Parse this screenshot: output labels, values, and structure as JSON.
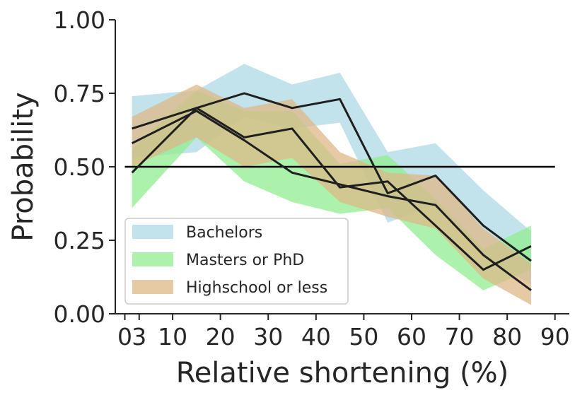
{
  "chart_data": {
    "type": "line",
    "title": "",
    "xlabel": "Relative shortening (%)",
    "ylabel": "Probability",
    "xlim": [
      -2,
      93
    ],
    "ylim": [
      0,
      1
    ],
    "x_ticks": [
      0,
      3,
      10,
      20,
      30,
      40,
      50,
      60,
      70,
      80,
      90
    ],
    "x_tick_labels": [
      "0",
      "3",
      "10",
      "20",
      "30",
      "40",
      "50",
      "60",
      "70",
      "80",
      "90"
    ],
    "y_ticks": [
      0,
      0.25,
      0.5,
      0.75,
      1.0
    ],
    "y_tick_labels": [
      "0.00",
      "0.25",
      "0.50",
      "0.75",
      "1.00"
    ],
    "grid": false,
    "legend_position": "lower-left",
    "reference_line": {
      "y": 0.5,
      "x_range": [
        0,
        90
      ],
      "color": "#000000"
    },
    "series": [
      {
        "name": "Bachelors",
        "color": "#add8e6",
        "x": [
          1.5,
          15,
          25,
          35,
          45,
          55,
          65,
          75,
          85
        ],
        "mean": [
          0.63,
          0.7,
          0.75,
          0.7,
          0.73,
          0.41,
          0.47,
          0.3,
          0.18
        ],
        "upper": [
          0.74,
          0.76,
          0.85,
          0.78,
          0.82,
          0.55,
          0.58,
          0.42,
          0.28
        ],
        "lower": [
          0.53,
          0.55,
          0.67,
          0.63,
          0.65,
          0.31,
          0.37,
          0.19,
          0.1
        ]
      },
      {
        "name": "Masters or PhD",
        "color": "#90ee90",
        "x": [
          1.5,
          15,
          25,
          35,
          45,
          55,
          65,
          75,
          85
        ],
        "mean": [
          0.48,
          0.7,
          0.6,
          0.63,
          0.43,
          0.45,
          0.3,
          0.15,
          0.23
        ],
        "upper": [
          0.56,
          0.76,
          0.69,
          0.69,
          0.51,
          0.54,
          0.39,
          0.22,
          0.3
        ],
        "lower": [
          0.36,
          0.6,
          0.45,
          0.38,
          0.34,
          0.36,
          0.2,
          0.08,
          0.15
        ]
      },
      {
        "name": "Highschool or less",
        "color": "#deb887",
        "x": [
          1.5,
          15,
          25,
          35,
          45,
          55,
          65,
          75,
          85
        ],
        "mean": [
          0.58,
          0.69,
          0.59,
          0.48,
          0.44,
          0.4,
          0.37,
          0.2,
          0.08
        ],
        "upper": [
          0.67,
          0.78,
          0.7,
          0.73,
          0.55,
          0.48,
          0.47,
          0.29,
          0.17
        ],
        "lower": [
          0.5,
          0.6,
          0.5,
          0.53,
          0.38,
          0.33,
          0.29,
          0.12,
          0.03
        ]
      }
    ]
  }
}
